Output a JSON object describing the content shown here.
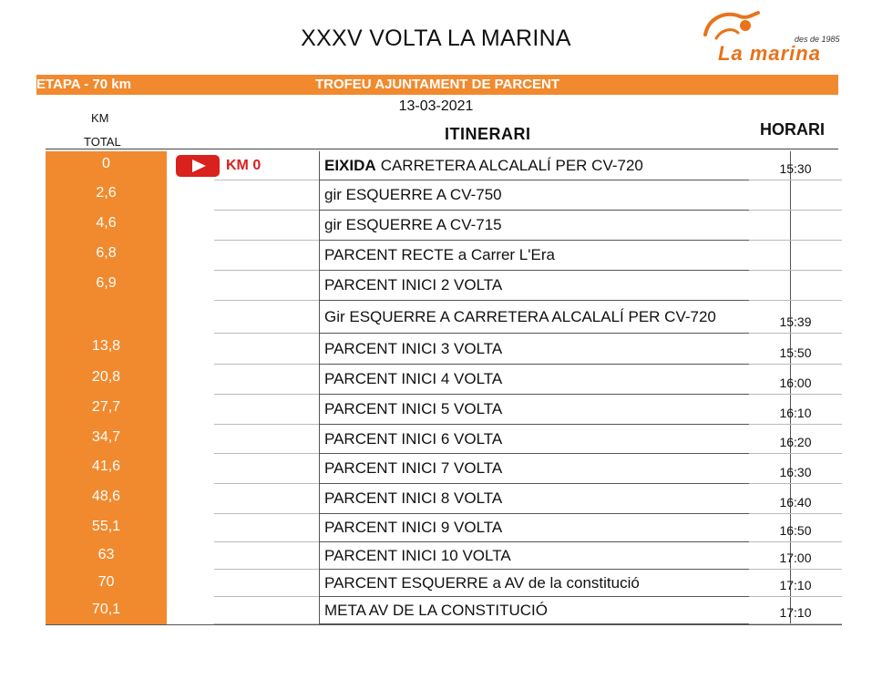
{
  "title": "XXXV VOLTA LA MARINA",
  "logo": {
    "since": "des de 1985",
    "brand": "La marina"
  },
  "band": {
    "left": "ETAPA - 70 km",
    "center": "TROFEU AJUNTAMENT DE PARCENT"
  },
  "date": "13-03-2021",
  "headers": {
    "km": "KM",
    "total": "TOTAL",
    "itinerari": "ITINERARI",
    "horari": "HORARI"
  },
  "start_badge": {
    "icon": "play-button-icon",
    "label": "KM 0",
    "color": "#d9211d"
  },
  "accent_color": "#f18a2e",
  "rows": [
    {
      "km": "0",
      "strong": "EIXIDA",
      "desc": "CARRETERA ALCALALÍ PER CV-720",
      "time": "15:30"
    },
    {
      "km": "2,6",
      "strong": "",
      "desc": "gir ESQUERRE A CV-750",
      "time": ""
    },
    {
      "km": "4,6",
      "strong": "",
      "desc": "gir ESQUERRE A CV-715",
      "time": ""
    },
    {
      "km": "6,8",
      "strong": "",
      "desc": "PARCENT RECTE a Carrer L'Era",
      "time": ""
    },
    {
      "km": "6,9",
      "strong": "",
      "desc": "PARCENT INICI 2 VOLTA",
      "time": ""
    },
    {
      "km": "",
      "strong": "",
      "desc": "Gir ESQUERRE A CARRETERA ALCALALÍ PER CV-720",
      "time": "15:39"
    },
    {
      "km": "13,8",
      "strong": "",
      "desc": "PARCENT INICI 3 VOLTA",
      "time": "15:50"
    },
    {
      "km": "20,8",
      "strong": "",
      "desc": "PARCENT INICI 4 VOLTA",
      "time": "16:00"
    },
    {
      "km": "27,7",
      "strong": "",
      "desc": "PARCENT INICI 5 VOLTA",
      "time": "16:10"
    },
    {
      "km": "34,7",
      "strong": "",
      "desc": "PARCENT INICI 6 VOLTA",
      "time": "16:20"
    },
    {
      "km": "41,6",
      "strong": "",
      "desc": "PARCENT INICI 7 VOLTA",
      "time": "16:30"
    },
    {
      "km": "48,6",
      "strong": "",
      "desc": "PARCENT INICI 8 VOLTA",
      "time": "16:40"
    },
    {
      "km": "55,1",
      "strong": "",
      "desc": "PARCENT INICI 9 VOLTA",
      "time": "16:50"
    },
    {
      "km": "63",
      "strong": "",
      "desc": "PARCENT INICI 10 VOLTA",
      "time": "17:00"
    },
    {
      "km": "70",
      "strong": "",
      "desc": "PARCENT ESQUERRE a AV de la constitució",
      "time": "17:10"
    },
    {
      "km": "70,1",
      "strong": "",
      "desc": "META AV DE LA CONSTITUCIÓ",
      "time": "17:10"
    }
  ]
}
